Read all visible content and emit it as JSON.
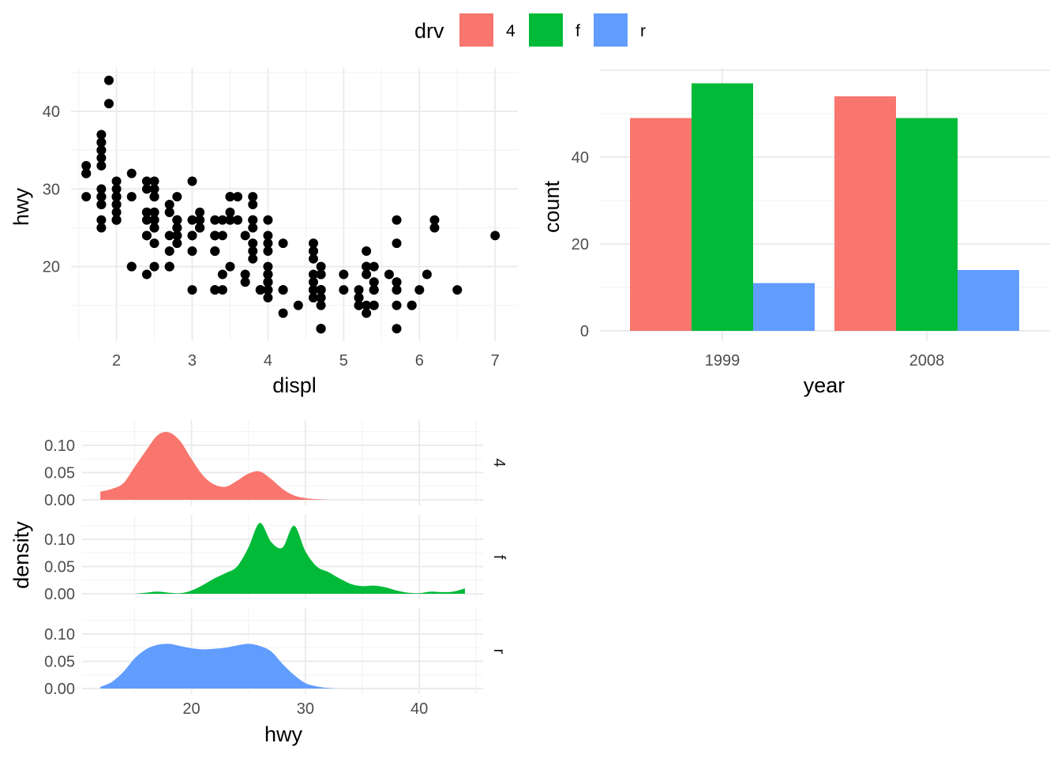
{
  "legend": {
    "title": "drv",
    "items": [
      {
        "label": "4",
        "color": "#F8766D"
      },
      {
        "label": "f",
        "color": "#00BA38"
      },
      {
        "label": "r",
        "color": "#619CFF"
      }
    ]
  },
  "chart_data": [
    {
      "type": "scatter",
      "title": "",
      "xlabel": "displ",
      "ylabel": "hwy",
      "xlim": [
        1.4,
        7.3
      ],
      "ylim": [
        10.4,
        45.6
      ],
      "xticks": [
        "2",
        "3",
        "4",
        "5",
        "6",
        "7"
      ],
      "yticks": [
        "20",
        "30",
        "40"
      ],
      "point_color": "#000000",
      "grid": true,
      "points": [
        [
          1.8,
          29
        ],
        [
          1.8,
          29
        ],
        [
          2.0,
          31
        ],
        [
          2.0,
          30
        ],
        [
          2.8,
          26
        ],
        [
          2.8,
          26
        ],
        [
          3.1,
          27
        ],
        [
          1.8,
          26
        ],
        [
          1.8,
          25
        ],
        [
          2.0,
          28
        ],
        [
          2.0,
          27
        ],
        [
          2.8,
          25
        ],
        [
          2.8,
          25
        ],
        [
          3.1,
          25
        ],
        [
          3.1,
          25
        ],
        [
          2.8,
          24
        ],
        [
          3.1,
          25
        ],
        [
          4.2,
          23
        ],
        [
          5.3,
          20
        ],
        [
          5.3,
          15
        ],
        [
          5.3,
          20
        ],
        [
          5.7,
          17
        ],
        [
          6.0,
          17
        ],
        [
          5.7,
          26
        ],
        [
          5.7,
          23
        ],
        [
          6.2,
          26
        ],
        [
          6.2,
          25
        ],
        [
          7.0,
          24
        ],
        [
          5.3,
          19
        ],
        [
          5.3,
          14
        ],
        [
          5.7,
          15
        ],
        [
          6.5,
          17
        ],
        [
          2.4,
          27
        ],
        [
          2.4,
          30
        ],
        [
          3.1,
          26
        ],
        [
          3.5,
          29
        ],
        [
          3.6,
          26
        ],
        [
          2.4,
          24
        ],
        [
          3.0,
          24
        ],
        [
          3.3,
          22
        ],
        [
          3.3,
          22
        ],
        [
          3.3,
          24
        ],
        [
          3.3,
          24
        ],
        [
          3.3,
          17
        ],
        [
          3.8,
          22
        ],
        [
          3.8,
          21
        ],
        [
          3.8,
          23
        ],
        [
          4.0,
          23
        ],
        [
          3.7,
          19
        ],
        [
          3.7,
          18
        ],
        [
          3.9,
          17
        ],
        [
          3.9,
          17
        ],
        [
          4.7,
          19
        ],
        [
          4.7,
          19
        ],
        [
          4.7,
          12
        ],
        [
          4.7,
          17
        ],
        [
          5.2,
          17
        ],
        [
          5.2,
          15
        ],
        [
          3.9,
          17
        ],
        [
          4.7,
          17
        ],
        [
          4.7,
          12
        ],
        [
          4.7,
          17
        ],
        [
          5.2,
          16
        ],
        [
          5.7,
          18
        ],
        [
          5.9,
          15
        ],
        [
          4.7,
          16
        ],
        [
          4.7,
          12
        ],
        [
          4.7,
          17
        ],
        [
          4.7,
          17
        ],
        [
          4.7,
          16
        ],
        [
          4.7,
          12
        ],
        [
          5.2,
          15
        ],
        [
          5.2,
          16
        ],
        [
          5.7,
          17
        ],
        [
          5.9,
          15
        ],
        [
          4.6,
          17
        ],
        [
          5.4,
          17
        ],
        [
          5.4,
          18
        ],
        [
          4.0,
          17
        ],
        [
          4.0,
          19
        ],
        [
          4.0,
          17
        ],
        [
          4.0,
          19
        ],
        [
          4.6,
          19
        ],
        [
          5.0,
          17
        ],
        [
          4.2,
          17
        ],
        [
          4.2,
          17
        ],
        [
          4.6,
          16
        ],
        [
          4.6,
          16
        ],
        [
          4.6,
          17
        ],
        [
          5.4,
          15
        ],
        [
          5.4,
          17
        ],
        [
          3.8,
          26
        ],
        [
          3.8,
          25
        ],
        [
          4.0,
          26
        ],
        [
          4.0,
          24
        ],
        [
          4.6,
          21
        ],
        [
          4.6,
          22
        ],
        [
          4.6,
          23
        ],
        [
          4.6,
          22
        ],
        [
          5.4,
          20
        ],
        [
          1.6,
          33
        ],
        [
          1.6,
          32
        ],
        [
          1.6,
          32
        ],
        [
          1.6,
          29
        ],
        [
          1.6,
          32
        ],
        [
          1.8,
          34
        ],
        [
          1.8,
          36
        ],
        [
          1.8,
          36
        ],
        [
          2.0,
          29
        ],
        [
          2.4,
          26
        ],
        [
          2.4,
          27
        ],
        [
          2.5,
          30
        ],
        [
          2.5,
          31
        ],
        [
          3.3,
          26
        ],
        [
          2.0,
          26
        ],
        [
          2.0,
          28
        ],
        [
          2.0,
          26
        ],
        [
          2.0,
          29
        ],
        [
          2.7,
          28
        ],
        [
          2.7,
          27
        ],
        [
          2.7,
          24
        ],
        [
          3.0,
          24
        ],
        [
          3.7,
          24
        ],
        [
          4.0,
          22
        ],
        [
          4.7,
          19
        ],
        [
          4.7,
          20
        ],
        [
          4.7,
          17
        ],
        [
          5.7,
          12
        ],
        [
          6.1,
          19
        ],
        [
          4.0,
          18
        ],
        [
          4.2,
          14
        ],
        [
          4.4,
          15
        ],
        [
          4.6,
          18
        ],
        [
          5.4,
          18
        ],
        [
          5.4,
          15
        ],
        [
          5.4,
          17
        ],
        [
          4.0,
          16
        ],
        [
          4.0,
          18
        ],
        [
          4.6,
          17
        ],
        [
          5.0,
          19
        ],
        [
          2.4,
          19
        ],
        [
          2.4,
          24
        ],
        [
          2.5,
          20
        ],
        [
          2.5,
          29
        ],
        [
          3.5,
          27
        ],
        [
          3.5,
          20
        ],
        [
          3.0,
          22
        ],
        [
          3.0,
          17
        ],
        [
          3.5,
          26
        ],
        [
          3.3,
          24
        ],
        [
          3.3,
          17
        ],
        [
          4.0,
          19
        ],
        [
          5.6,
          19
        ],
        [
          3.1,
          26
        ],
        [
          3.8,
          28
        ],
        [
          3.8,
          29
        ],
        [
          3.8,
          26
        ],
        [
          5.3,
          22
        ],
        [
          2.5,
          26
        ],
        [
          2.5,
          23
        ],
        [
          2.5,
          26
        ],
        [
          2.5,
          26
        ],
        [
          2.5,
          25
        ],
        [
          2.5,
          27
        ],
        [
          2.2,
          20
        ],
        [
          2.2,
          20
        ],
        [
          2.5,
          27
        ],
        [
          2.5,
          25
        ],
        [
          2.7,
          27
        ],
        [
          2.7,
          20
        ],
        [
          3.4,
          26
        ],
        [
          3.4,
          24
        ],
        [
          4.0,
          18
        ],
        [
          4.7,
          17
        ],
        [
          2.2,
          32
        ],
        [
          2.2,
          29
        ],
        [
          2.4,
          27
        ],
        [
          2.4,
          31
        ],
        [
          3.0,
          31
        ],
        [
          3.0,
          26
        ],
        [
          3.5,
          26
        ],
        [
          3.5,
          29
        ],
        [
          1.8,
          30
        ],
        [
          1.8,
          33
        ],
        [
          1.8,
          35
        ],
        [
          1.8,
          37
        ],
        [
          1.8,
          35
        ],
        [
          4.7,
          15
        ],
        [
          5.7,
          18
        ],
        [
          2.7,
          20
        ],
        [
          2.7,
          20
        ],
        [
          2.7,
          22
        ],
        [
          3.4,
          17
        ],
        [
          3.4,
          19
        ],
        [
          4.0,
          18
        ],
        [
          4.0,
          20
        ],
        [
          2.0,
          29
        ],
        [
          2.0,
          26
        ],
        [
          2.8,
          29
        ],
        [
          1.9,
          44
        ],
        [
          2.0,
          29
        ],
        [
          2.5,
          29
        ],
        [
          2.8,
          23
        ],
        [
          1.9,
          41
        ],
        [
          2.0,
          29
        ],
        [
          2.5,
          26
        ],
        [
          1.8,
          28
        ],
        [
          2.8,
          24
        ],
        [
          2.8,
          26
        ],
        [
          3.6,
          29
        ],
        [
          1.8,
          29
        ],
        [
          1.8,
          28
        ],
        [
          2.0,
          26
        ]
      ]
    },
    {
      "type": "bar",
      "title": "",
      "xlabel": "year",
      "ylabel": "count",
      "categories": [
        "1999",
        "2008"
      ],
      "ylim": [
        0,
        60
      ],
      "yticks": [
        "0",
        "20",
        "40"
      ],
      "series": [
        {
          "name": "4",
          "color": "#F8766D",
          "values": [
            49,
            54
          ]
        },
        {
          "name": "f",
          "color": "#00BA38",
          "values": [
            57,
            49
          ]
        },
        {
          "name": "r",
          "color": "#619CFF",
          "values": [
            11,
            14
          ]
        }
      ],
      "grid": true
    },
    {
      "type": "area",
      "title": "",
      "xlabel": "hwy",
      "ylabel": "density",
      "xlim": [
        10.4,
        45.6
      ],
      "ylim": [
        0,
        0.135
      ],
      "xticks": [
        "20",
        "30",
        "40"
      ],
      "yticks": [
        "0.00",
        "0.05",
        "0.10"
      ],
      "facets": [
        "4",
        "f",
        "r"
      ],
      "x": [
        12,
        13,
        14,
        15,
        16,
        17,
        18,
        19,
        20,
        21,
        22,
        23,
        24,
        25,
        26,
        27,
        28,
        29,
        30,
        31,
        32,
        33,
        34,
        35,
        36,
        37,
        38,
        39,
        40,
        41,
        42,
        43,
        44
      ],
      "series": [
        {
          "name": "4",
          "color": "#F8766D",
          "values": [
            0.015,
            0.02,
            0.03,
            0.06,
            0.09,
            0.118,
            0.124,
            0.108,
            0.075,
            0.045,
            0.028,
            0.024,
            0.035,
            0.048,
            0.052,
            0.038,
            0.02,
            0.008,
            0.003,
            0.001,
            0,
            0,
            0,
            0,
            0,
            0,
            0,
            0,
            0,
            0,
            0,
            0,
            0
          ]
        },
        {
          "name": "f",
          "color": "#00BA38",
          "values": [
            0,
            0,
            0,
            0,
            0.002,
            0.004,
            0.002,
            0.001,
            0.006,
            0.016,
            0.028,
            0.038,
            0.05,
            0.085,
            0.13,
            0.095,
            0.085,
            0.125,
            0.078,
            0.05,
            0.04,
            0.028,
            0.018,
            0.014,
            0.015,
            0.012,
            0.006,
            0.002,
            0.001,
            0.004,
            0.003,
            0.004,
            0.01
          ]
        },
        {
          "name": "r",
          "color": "#619CFF",
          "values": [
            0.003,
            0.012,
            0.03,
            0.055,
            0.072,
            0.08,
            0.082,
            0.078,
            0.074,
            0.072,
            0.073,
            0.075,
            0.079,
            0.082,
            0.078,
            0.068,
            0.045,
            0.025,
            0.01,
            0.004,
            0.001,
            0,
            0,
            0,
            0,
            0,
            0,
            0,
            0,
            0,
            0,
            0,
            0
          ]
        }
      ],
      "grid": true
    }
  ]
}
